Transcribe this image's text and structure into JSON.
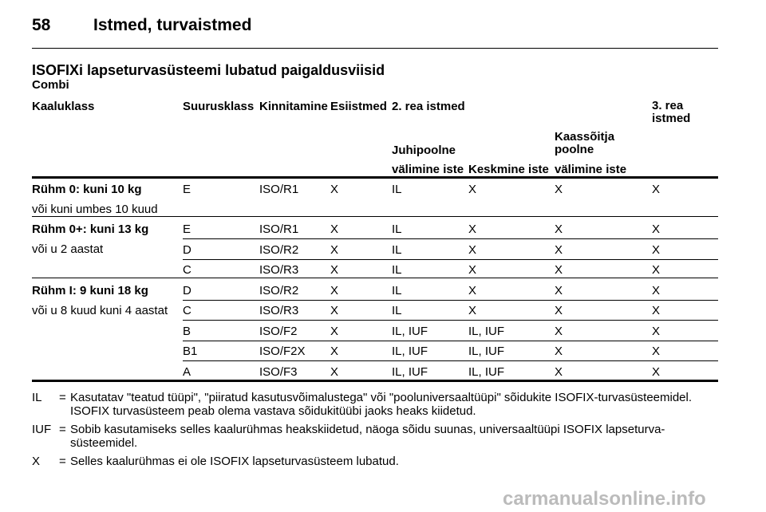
{
  "header": {
    "page": "58",
    "title": "Istmed, turvaistmed"
  },
  "section": {
    "title": "ISOFIXi lapseturvasüsteemi lubatud paigaldusviisid",
    "subtitle": "Combi"
  },
  "table": {
    "columns": {
      "weight": "Kaaluklass",
      "size": "Suurusklass",
      "fixing": "Kinnitamine",
      "front": "Esiistmed",
      "row2": "2. rea istmed",
      "row3": "3. rea istmed",
      "driver_side": "Juhipoolne",
      "passenger_side": "Kaassõitja poolne",
      "outer1": "välimine iste",
      "middle": "Keskmine iste",
      "outer2": "välimine iste"
    },
    "groups": [
      {
        "label": "Rühm 0: kuni 10 kg",
        "sublabel": "või kuni umbes 10 kuud",
        "rows": [
          [
            "E",
            "ISO/R1",
            "X",
            "IL",
            "X",
            "X",
            "X"
          ]
        ]
      },
      {
        "label": "Rühm 0+: kuni 13 kg",
        "sublabel": "või u 2 aastat",
        "rows": [
          [
            "E",
            "ISO/R1",
            "X",
            "IL",
            "X",
            "X",
            "X"
          ],
          [
            "D",
            "ISO/R2",
            "X",
            "IL",
            "X",
            "X",
            "X"
          ],
          [
            "C",
            "ISO/R3",
            "X",
            "IL",
            "X",
            "X",
            "X"
          ]
        ]
      },
      {
        "label": "Rühm I: 9 kuni 18 kg",
        "sublabel": "või u 8 kuud kuni 4 aastat",
        "rows": [
          [
            "D",
            "ISO/R2",
            "X",
            "IL",
            "X",
            "X",
            "X"
          ],
          [
            "C",
            "ISO/R3",
            "X",
            "IL",
            "X",
            "X",
            "X"
          ],
          [
            "B",
            "ISO/F2",
            "X",
            "IL, IUF",
            "IL, IUF",
            "X",
            "X"
          ],
          [
            "B1",
            "ISO/F2X",
            "X",
            "IL, IUF",
            "IL, IUF",
            "X",
            "X"
          ],
          [
            "A",
            "ISO/F3",
            "X",
            "IL, IUF",
            "IL, IUF",
            "X",
            "X"
          ]
        ]
      }
    ]
  },
  "notes": [
    {
      "key": "IL",
      "sep": "=",
      "text": "Kasutatav \"teatud tüüpi\", \"piiratud kasutusvõimalustega\" või \"pooluniversaaltüüpi\" sõidukite ISOFIX-turvasüsteemidel. ISOFIX turvasüsteem peab olema vastava sõidukitüübi jaoks heaks kiidetud."
    },
    {
      "key": "IUF",
      "sep": "=",
      "text": "Sobib kasutamiseks selles kaalurühmas heakskiidetud, näoga sõidu suunas, universaaltüüpi ISOFIX lapseturva-süsteemidel."
    },
    {
      "key": "X",
      "sep": "=",
      "text": "Selles kaalurühmas ei ole ISOFIX lapseturvasüsteem lubatud."
    }
  ],
  "footer": "carmanualsonline.info"
}
